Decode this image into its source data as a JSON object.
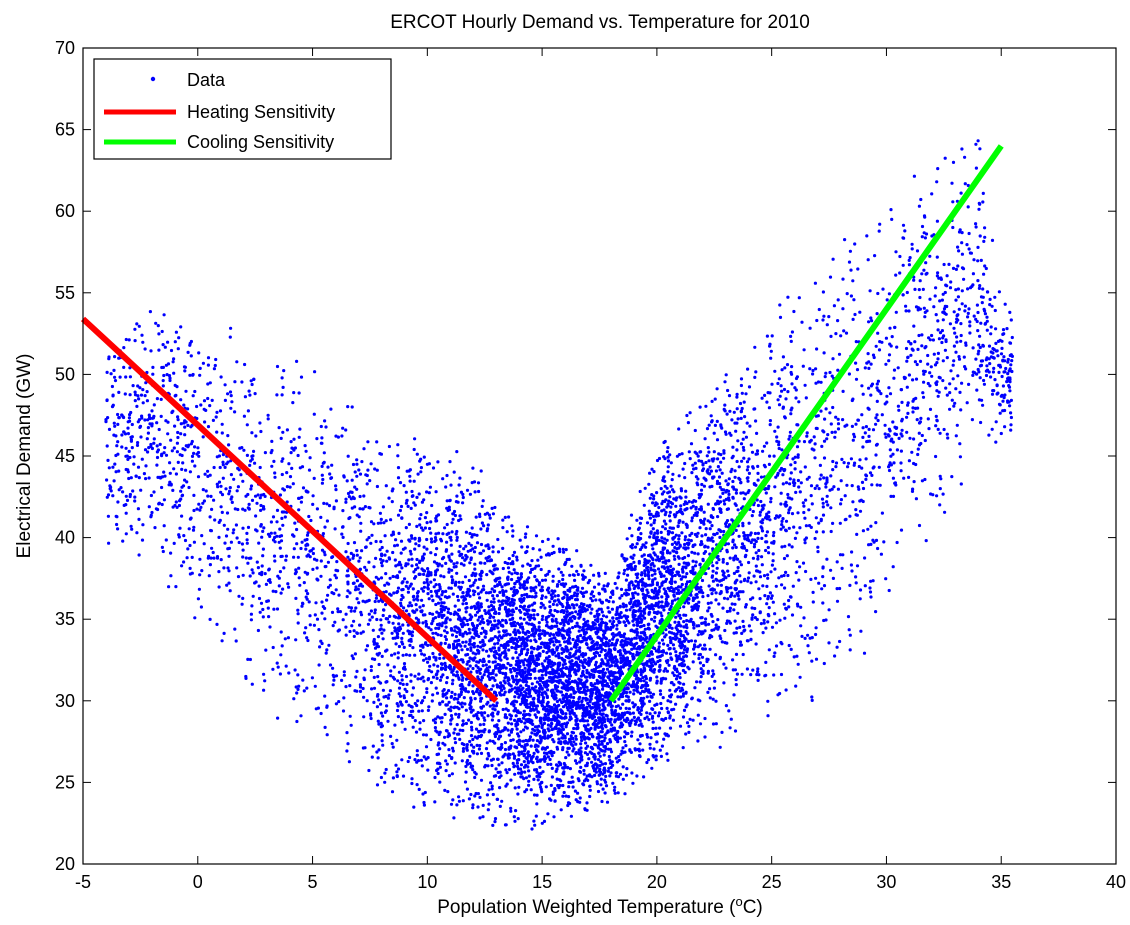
{
  "chart_data": {
    "type": "scatter",
    "title": "ERCOT Hourly Demand vs. Temperature for 2010",
    "xlabel": "Population Weighted Temperature (",
    "xlabel_degree": "o",
    "xlabel_unit": "C)",
    "ylabel": "Electrical Demand (GW)",
    "xlim": [
      -5,
      40
    ],
    "ylim": [
      20,
      70
    ],
    "xticks": [
      "-5",
      "0",
      "5",
      "10",
      "15",
      "20",
      "25",
      "30",
      "35",
      "40"
    ],
    "yticks": [
      "20",
      "25",
      "30",
      "35",
      "40",
      "45",
      "50",
      "55",
      "60",
      "65",
      "70"
    ],
    "grid": false,
    "legend_position": "top-left",
    "series": [
      {
        "name": "Data",
        "kind": "points",
        "color": "#0000ff",
        "point_count": 8760,
        "envelope": {
          "temperature_range": [
            -4,
            35.5
          ],
          "lower_bound_points": [
            [
              -2,
              38
            ],
            [
              2,
              30
            ],
            [
              5,
              27
            ],
            [
              7,
              24
            ],
            [
              9,
              23
            ],
            [
              11,
              22.5
            ],
            [
              13,
              22
            ],
            [
              15,
              22
            ],
            [
              17,
              23
            ],
            [
              19,
              24.5
            ],
            [
              21,
              26
            ],
            [
              23,
              27
            ],
            [
              25,
              28
            ],
            [
              27,
              29
            ],
            [
              29,
              31
            ],
            [
              30,
              34
            ],
            [
              32,
              40
            ],
            [
              33,
              42
            ],
            [
              35,
              45
            ]
          ],
          "upper_bound_points": [
            [
              -4,
              53
            ],
            [
              -2,
              56
            ],
            [
              0,
              54
            ],
            [
              2,
              53
            ],
            [
              4,
              52
            ],
            [
              6,
              50
            ],
            [
              8,
              47
            ],
            [
              10,
              47
            ],
            [
              12,
              45
            ],
            [
              14,
              41
            ],
            [
              16,
              40
            ],
            [
              18,
              38
            ],
            [
              20,
              46
            ],
            [
              22,
              49
            ],
            [
              24,
              53
            ],
            [
              26,
              56
            ],
            [
              28,
              59
            ],
            [
              30,
              62
            ],
            [
              32,
              64
            ],
            [
              34,
              66
            ],
            [
              35,
              55
            ]
          ]
        }
      },
      {
        "name": "Heating Sensitivity",
        "kind": "line",
        "color": "#ff0000",
        "x": [
          -5,
          13
        ],
        "y": [
          53.4,
          30
        ]
      },
      {
        "name": "Cooling Sensitivity",
        "kind": "line",
        "color": "#00ff00",
        "x": [
          18,
          35
        ],
        "y": [
          30,
          64
        ]
      }
    ]
  }
}
